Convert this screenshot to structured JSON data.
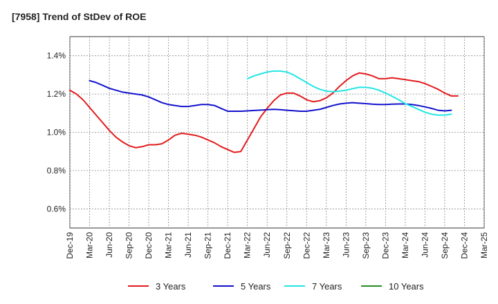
{
  "chart_data": {
    "type": "line",
    "title": "[7958]  Trend of StDev of ROE",
    "xlabel": "",
    "ylabel": "",
    "x_ticks": [
      "Dec-19",
      "Mar-20",
      "Jun-20",
      "Sep-20",
      "Dec-20",
      "Mar-21",
      "Jun-21",
      "Sep-21",
      "Dec-21",
      "Mar-22",
      "Jun-22",
      "Sep-22",
      "Dec-22",
      "Mar-23",
      "Jun-23",
      "Sep-23",
      "Dec-23",
      "Mar-24",
      "Jun-24",
      "Sep-24",
      "Dec-24",
      "Mar-25"
    ],
    "y_ticks": [
      "0.6%",
      "0.8%",
      "1.0%",
      "1.2%",
      "1.4%"
    ],
    "y_tick_values": [
      0.6,
      0.8,
      1.0,
      1.2,
      1.4
    ],
    "ylim": [
      0.5,
      1.5
    ],
    "grid": true,
    "legend_position": "bottom",
    "x_format": "month index from Dec-19 (0) to Mar-25 (63)",
    "series": [
      {
        "name": "3 Years",
        "color": "#e31a1c",
        "points": [
          [
            0,
            1.22
          ],
          [
            1,
            1.2
          ],
          [
            2,
            1.17
          ],
          [
            3,
            1.13
          ],
          [
            4,
            1.09
          ],
          [
            5,
            1.05
          ],
          [
            6,
            1.01
          ],
          [
            7,
            0.975
          ],
          [
            8,
            0.95
          ],
          [
            9,
            0.93
          ],
          [
            10,
            0.92
          ],
          [
            11,
            0.925
          ],
          [
            12,
            0.935
          ],
          [
            13,
            0.935
          ],
          [
            14,
            0.94
          ],
          [
            15,
            0.96
          ],
          [
            16,
            0.985
          ],
          [
            17,
            0.995
          ],
          [
            18,
            0.99
          ],
          [
            19,
            0.985
          ],
          [
            20,
            0.975
          ],
          [
            21,
            0.96
          ],
          [
            22,
            0.945
          ],
          [
            23,
            0.925
          ],
          [
            24,
            0.91
          ],
          [
            25,
            0.895
          ],
          [
            26,
            0.9
          ],
          [
            27,
            0.96
          ],
          [
            28,
            1.02
          ],
          [
            29,
            1.08
          ],
          [
            30,
            1.125
          ],
          [
            31,
            1.165
          ],
          [
            32,
            1.195
          ],
          [
            33,
            1.205
          ],
          [
            34,
            1.205
          ],
          [
            35,
            1.19
          ],
          [
            36,
            1.17
          ],
          [
            37,
            1.16
          ],
          [
            38,
            1.165
          ],
          [
            39,
            1.18
          ],
          [
            40,
            1.205
          ],
          [
            41,
            1.24
          ],
          [
            42,
            1.27
          ],
          [
            43,
            1.295
          ],
          [
            44,
            1.31
          ],
          [
            45,
            1.305
          ],
          [
            46,
            1.295
          ],
          [
            47,
            1.28
          ],
          [
            48,
            1.28
          ],
          [
            49,
            1.285
          ],
          [
            50,
            1.28
          ],
          [
            51,
            1.275
          ],
          [
            52,
            1.27
          ],
          [
            53,
            1.265
          ],
          [
            54,
            1.255
          ],
          [
            55,
            1.24
          ],
          [
            56,
            1.225
          ],
          [
            57,
            1.205
          ],
          [
            58,
            1.19
          ],
          [
            59,
            1.19
          ]
        ]
      },
      {
        "name": "5 Years",
        "color": "#1010cc",
        "points": [
          [
            3,
            1.27
          ],
          [
            4,
            1.26
          ],
          [
            5,
            1.245
          ],
          [
            6,
            1.23
          ],
          [
            7,
            1.22
          ],
          [
            8,
            1.21
          ],
          [
            9,
            1.205
          ],
          [
            10,
            1.2
          ],
          [
            11,
            1.195
          ],
          [
            12,
            1.185
          ],
          [
            13,
            1.17
          ],
          [
            14,
            1.155
          ],
          [
            15,
            1.145
          ],
          [
            16,
            1.14
          ],
          [
            17,
            1.135
          ],
          [
            18,
            1.135
          ],
          [
            19,
            1.14
          ],
          [
            20,
            1.145
          ],
          [
            21,
            1.145
          ],
          [
            22,
            1.14
          ],
          [
            23,
            1.125
          ],
          [
            24,
            1.11
          ],
          [
            25,
            1.11
          ],
          [
            26,
            1.11
          ],
          [
            27,
            1.112
          ],
          [
            28,
            1.114
          ],
          [
            29,
            1.116
          ],
          [
            30,
            1.118
          ],
          [
            31,
            1.12
          ],
          [
            32,
            1.118
          ],
          [
            33,
            1.115
          ],
          [
            34,
            1.113
          ],
          [
            35,
            1.11
          ],
          [
            36,
            1.11
          ],
          [
            37,
            1.115
          ],
          [
            38,
            1.12
          ],
          [
            39,
            1.13
          ],
          [
            40,
            1.14
          ],
          [
            41,
            1.148
          ],
          [
            42,
            1.152
          ],
          [
            43,
            1.155
          ],
          [
            44,
            1.152
          ],
          [
            45,
            1.15
          ],
          [
            46,
            1.147
          ],
          [
            47,
            1.145
          ],
          [
            48,
            1.145
          ],
          [
            49,
            1.147
          ],
          [
            50,
            1.148
          ],
          [
            51,
            1.148
          ],
          [
            52,
            1.145
          ],
          [
            53,
            1.14
          ],
          [
            54,
            1.133
          ],
          [
            55,
            1.125
          ],
          [
            56,
            1.115
          ],
          [
            57,
            1.112
          ],
          [
            58,
            1.115
          ]
        ]
      },
      {
        "name": "7 Years",
        "color": "#22e5e5",
        "points": [
          [
            27,
            1.28
          ],
          [
            28,
            1.295
          ],
          [
            29,
            1.305
          ],
          [
            30,
            1.315
          ],
          [
            31,
            1.32
          ],
          [
            32,
            1.32
          ],
          [
            33,
            1.315
          ],
          [
            34,
            1.3
          ],
          [
            35,
            1.28
          ],
          [
            36,
            1.26
          ],
          [
            37,
            1.24
          ],
          [
            38,
            1.225
          ],
          [
            39,
            1.215
          ],
          [
            40,
            1.212
          ],
          [
            41,
            1.215
          ],
          [
            42,
            1.22
          ],
          [
            43,
            1.228
          ],
          [
            44,
            1.235
          ],
          [
            45,
            1.235
          ],
          [
            46,
            1.23
          ],
          [
            47,
            1.22
          ],
          [
            48,
            1.205
          ],
          [
            49,
            1.188
          ],
          [
            50,
            1.17
          ],
          [
            51,
            1.15
          ],
          [
            52,
            1.135
          ],
          [
            53,
            1.12
          ],
          [
            54,
            1.105
          ],
          [
            55,
            1.095
          ],
          [
            56,
            1.09
          ],
          [
            57,
            1.09
          ],
          [
            58,
            1.095
          ]
        ]
      },
      {
        "name": "10 Years",
        "color": "#228b22",
        "points": []
      }
    ]
  }
}
